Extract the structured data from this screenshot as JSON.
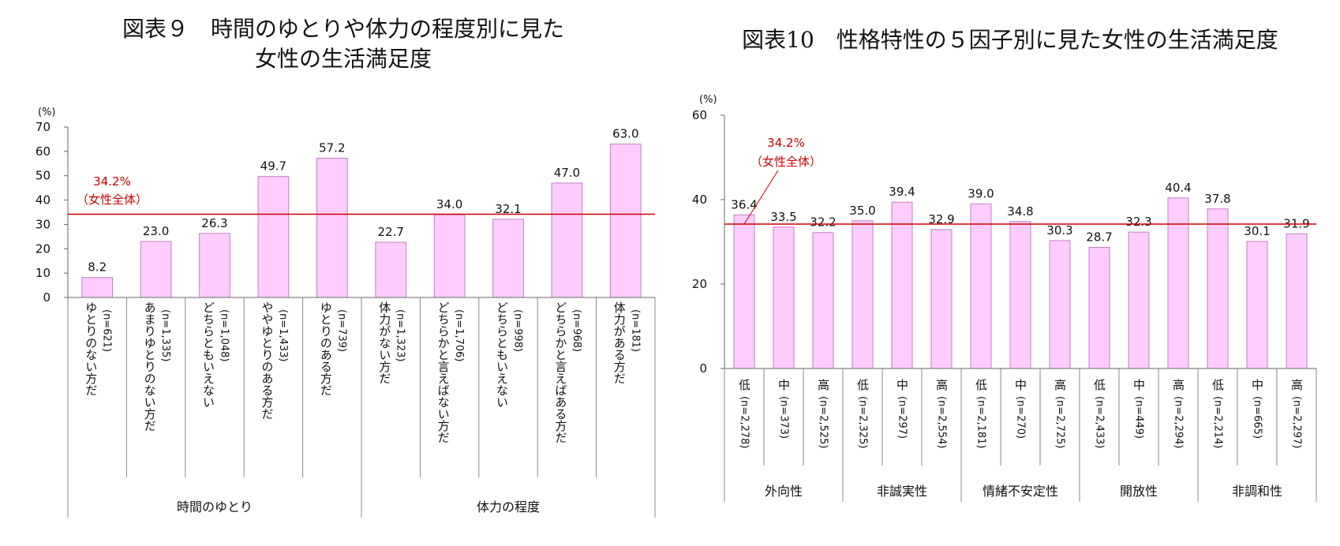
{
  "figures": [
    {
      "title_line1": "図表９　時間のゆとりや体力の程度別に見た",
      "title_line2": "女性の生活満足度"
    },
    {
      "title_line1": "図表10　性格特性の５因子別に見た女性の生活満足度",
      "title_line2": ""
    }
  ],
  "chart_data": [
    {
      "type": "bar",
      "y_unit_label": "(%)",
      "ylim": [
        0,
        70
      ],
      "yticks": [
        0,
        10,
        20,
        30,
        40,
        50,
        60,
        70
      ],
      "bar_color": "#ffccff",
      "bar_border": "#c080c0",
      "reference_line": {
        "value": 34.2,
        "label_line1": "34.2%",
        "label_line2": "（女性全体）",
        "color": "#cc0000"
      },
      "groups": [
        {
          "name": "時間のゆとり",
          "count": 5
        },
        {
          "name": "体力の程度",
          "count": 5
        }
      ],
      "categories": [
        {
          "label": "ゆとりのない方だ",
          "n": "(n=621)"
        },
        {
          "label": "あまりゆとりのない方だ",
          "n": "(n=1,335)"
        },
        {
          "label": "どちらともいえない",
          "n": "(n=1,048)"
        },
        {
          "label": "ややゆとりのある方だ",
          "n": "(n=1,433)"
        },
        {
          "label": "ゆとりのある方だ",
          "n": "(n=739)"
        },
        {
          "label": "体力がない方だ",
          "n": "(n=1,323)"
        },
        {
          "label": "どちらかと言えばない方だ",
          "n": "(n=1,706)"
        },
        {
          "label": "どちらともいえない",
          "n": "(n=998)"
        },
        {
          "label": "どちらかと言えばある方だ",
          "n": "(n=968)"
        },
        {
          "label": "体力がある方だ",
          "n": "(n=181)"
        }
      ],
      "values": [
        8.2,
        23.0,
        26.3,
        49.7,
        57.2,
        22.7,
        34.0,
        32.1,
        47.0,
        63.0
      ],
      "value_labels": [
        "8.2",
        "23.0",
        "26.3",
        "49.7",
        "57.2",
        "22.7",
        "34.0",
        "32.1",
        "47.0",
        "63.0"
      ]
    },
    {
      "type": "bar",
      "y_unit_label": "(%)",
      "ylim": [
        0,
        60
      ],
      "yticks": [
        0,
        20,
        40,
        60
      ],
      "bar_color": "#ffccff",
      "bar_border": "#c080c0",
      "reference_line": {
        "value": 34.2,
        "label_line1": "34.2%",
        "label_line2": "（女性全体）",
        "color": "#cc0000"
      },
      "groups": [
        {
          "name": "外向性",
          "count": 3
        },
        {
          "name": "非誠実性",
          "count": 3
        },
        {
          "name": "情緒不安定性",
          "count": 3
        },
        {
          "name": "開放性",
          "count": 3
        },
        {
          "name": "非調和性",
          "count": 3
        }
      ],
      "categories": [
        {
          "label": "低",
          "n": "(n=2,278)"
        },
        {
          "label": "中",
          "n": "(n=373)"
        },
        {
          "label": "高",
          "n": "(n=2,525)"
        },
        {
          "label": "低",
          "n": "(n=2,325)"
        },
        {
          "label": "中",
          "n": "(n=297)"
        },
        {
          "label": "高",
          "n": "(n=2,554)"
        },
        {
          "label": "低",
          "n": "(n=2,181)"
        },
        {
          "label": "中",
          "n": "(n=270)"
        },
        {
          "label": "高",
          "n": "(n=2,725)"
        },
        {
          "label": "低",
          "n": "(n=2,433)"
        },
        {
          "label": "中",
          "n": "(n=449)"
        },
        {
          "label": "高",
          "n": "(n=2,294)"
        },
        {
          "label": "低",
          "n": "(n=2,214)"
        },
        {
          "label": "中",
          "n": "(n=665)"
        },
        {
          "label": "高",
          "n": "(n=2,297)"
        }
      ],
      "values": [
        36.4,
        33.5,
        32.2,
        35.0,
        39.4,
        32.9,
        39.0,
        34.8,
        30.3,
        28.7,
        32.3,
        40.4,
        37.8,
        30.1,
        31.9
      ],
      "value_labels": [
        "36.4",
        "33.5",
        "32.2",
        "35.0",
        "39.4",
        "32.9",
        "39.0",
        "34.8",
        "30.3",
        "28.7",
        "32.3",
        "40.4",
        "37.8",
        "30.1",
        "31.9"
      ]
    }
  ]
}
